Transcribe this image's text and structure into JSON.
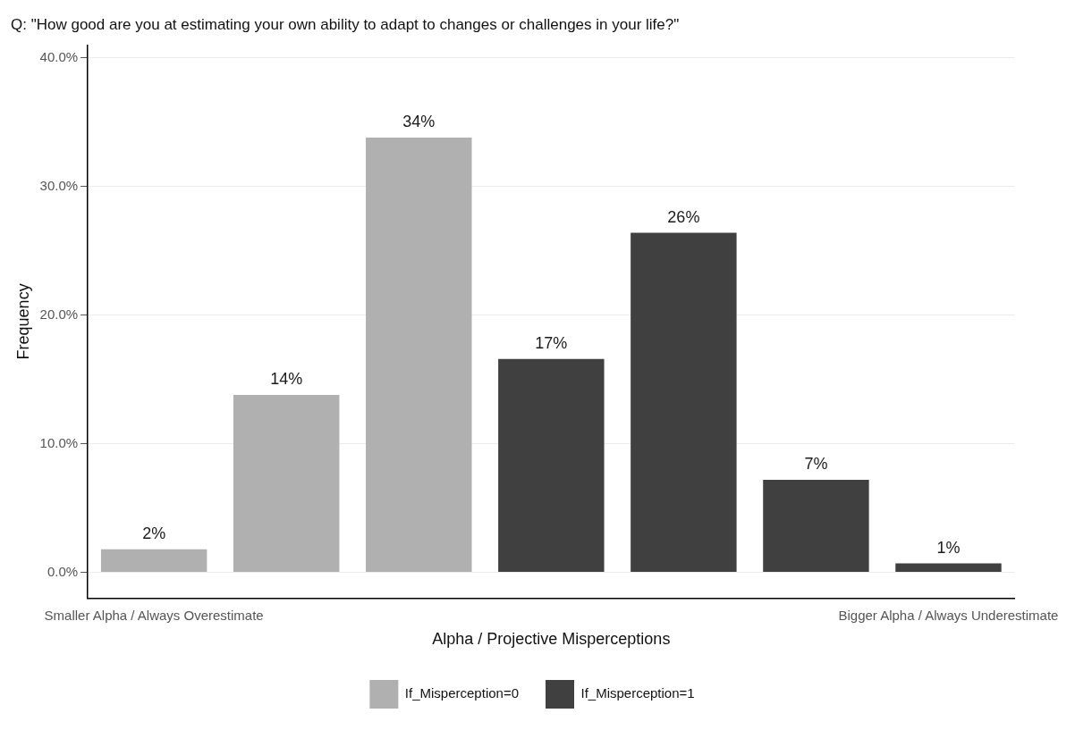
{
  "chart_data": {
    "type": "bar",
    "title": "Q: \"How good are you at estimating your own ability to adapt to changes or challenges in your life?\"",
    "xlabel": "Alpha / Projective Misperceptions",
    "ylabel": "Frequency",
    "categories": [
      "Smaller Alpha / Always Overestimate",
      null,
      null,
      null,
      null,
      null,
      "Bigger Alpha / Always Underestimate"
    ],
    "series": [
      {
        "name": "If_Misperception=0",
        "color": "#b0b0b0",
        "values": [
          1.8,
          13.8,
          33.8,
          null,
          null,
          null,
          null
        ],
        "value_labels": [
          "2%",
          "14%",
          "34%",
          null,
          null,
          null,
          null
        ]
      },
      {
        "name": "If_Misperception=1",
        "color": "#404040",
        "values": [
          null,
          null,
          null,
          16.6,
          26.4,
          7.2,
          0.7
        ],
        "value_labels": [
          null,
          null,
          null,
          "17%",
          "26%",
          "7%",
          "1%"
        ]
      }
    ],
    "ylim": [
      -2,
      41
    ],
    "yticks": [
      {
        "value": 0,
        "label": "0.0%"
      },
      {
        "value": 10,
        "label": "10.0%"
      },
      {
        "value": 20,
        "label": "20.0%"
      },
      {
        "value": 30,
        "label": "30.0%"
      },
      {
        "value": 40,
        "label": "40.0%"
      }
    ],
    "grid": "y",
    "legend": "bottom"
  }
}
